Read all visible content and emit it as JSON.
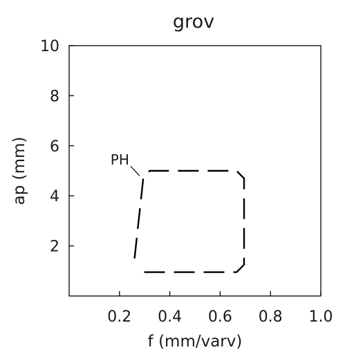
{
  "chart_data": {
    "type": "line",
    "title": "grov",
    "xlabel": "f (mm/varv)",
    "ylabel": "ap (mm)",
    "xlim": [
      0,
      1.0
    ],
    "ylim": [
      0,
      10
    ],
    "x_ticks": [
      {
        "value": 0.2,
        "label": "0.2"
      },
      {
        "value": 0.4,
        "label": "0.4"
      },
      {
        "value": 0.6,
        "label": "0.6"
      },
      {
        "value": 0.8,
        "label": "0.8"
      },
      {
        "value": 1.0,
        "label": "1.0"
      }
    ],
    "y_ticks": [
      {
        "value": 2,
        "label": "2"
      },
      {
        "value": 4,
        "label": "4"
      },
      {
        "value": 6,
        "label": "6"
      },
      {
        "value": 8,
        "label": "8"
      },
      {
        "value": 10,
        "label": "10"
      }
    ],
    "grid": false,
    "line_style": "dashed",
    "color": "#000000",
    "regions": [
      {
        "label": "PH",
        "label_anchor": [
          0.28,
          4.8
        ],
        "boundary": [
          [
            0.26,
            1.5
          ],
          [
            0.295,
            4.75
          ],
          [
            0.32,
            5.0
          ],
          [
            0.665,
            5.0
          ],
          [
            0.695,
            4.7
          ],
          [
            0.695,
            1.25
          ],
          [
            0.665,
            0.95
          ],
          [
            0.28,
            0.95
          ]
        ]
      }
    ]
  }
}
